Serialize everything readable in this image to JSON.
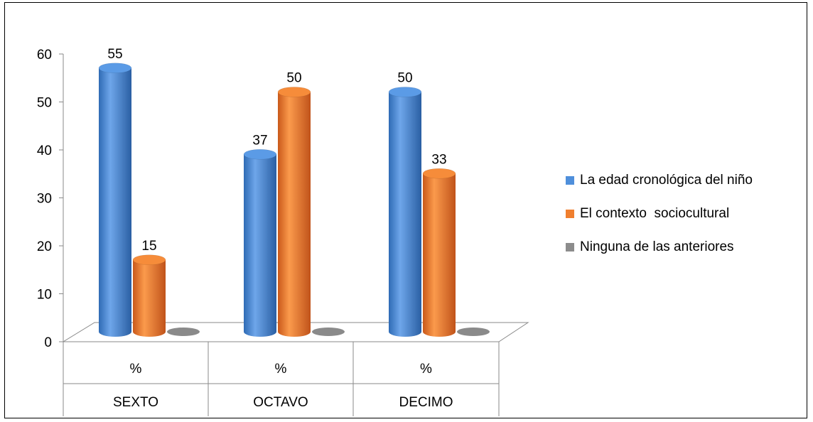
{
  "chart_data": {
    "type": "bar",
    "categories": [
      "%",
      "%",
      "%"
    ],
    "groups": [
      "SEXTO",
      "OCTAVO",
      "DECIMO"
    ],
    "series": [
      {
        "name": "La edad cronológica del niño",
        "values": [
          55,
          37,
          50
        ],
        "labels": [
          "55",
          "37",
          "50"
        ],
        "color": "#4F8FDB"
      },
      {
        "name": "El contexto  sociocultural",
        "values": [
          15,
          50,
          33
        ],
        "labels": [
          "15",
          "50",
          "33"
        ],
        "color": "#F07F2E"
      },
      {
        "name": "Ninguna de las anteriores",
        "values": [
          0,
          0,
          0
        ],
        "labels": [],
        "color": "#8C8C8C"
      }
    ],
    "ylim": [
      0,
      60
    ],
    "yticks": [
      "0",
      "10",
      "20",
      "30",
      "40",
      "50",
      "60"
    ],
    "legend_position": "right",
    "style": "3d-cylinder"
  }
}
